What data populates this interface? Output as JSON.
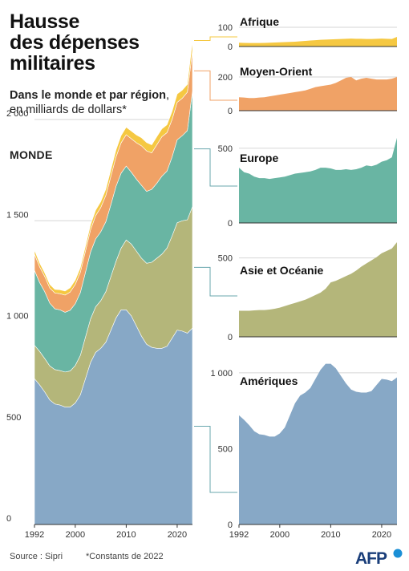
{
  "title": [
    "Hausse",
    "des dépenses",
    "militaires"
  ],
  "subtitle": {
    "line1_bold": "Dans le monde et par région",
    "line1_rest": ",",
    "line2": "en milliards de dollars*"
  },
  "world_label": "MONDE",
  "source": "Source : Sipri",
  "note": "*Constants de 2022",
  "logo_text": "AFP",
  "colors": {
    "afrique": "#f5c842",
    "moyen_orient": "#f0a266",
    "europe": "#69b5a3",
    "asie": "#b4b67a",
    "ameriques": "#87a8c6",
    "connector": "#6aa7ae",
    "connector_top": "#f5c842",
    "connector_mo": "#f0a266"
  },
  "chart_data": [
    {
      "id": "monde",
      "type": "area",
      "stacked": true,
      "title": "MONDE",
      "x": [
        1992,
        1993,
        1994,
        1995,
        1996,
        1997,
        1998,
        1999,
        2000,
        2001,
        2002,
        2003,
        2004,
        2005,
        2006,
        2007,
        2008,
        2009,
        2010,
        2011,
        2012,
        2013,
        2014,
        2015,
        2016,
        2017,
        2018,
        2019,
        2020,
        2021,
        2022,
        2023
      ],
      "xlim": [
        1992,
        2023
      ],
      "xticks": [
        "1992",
        "2000",
        "2010",
        "2020"
      ],
      "ylim": [
        0,
        2400
      ],
      "yticks": [
        "0",
        "500",
        "1 000",
        "1 500",
        "2 000"
      ],
      "series": [
        {
          "name": "Amériques",
          "key": "ameriques",
          "values": [
            720,
            690,
            655,
            615,
            595,
            590,
            580,
            580,
            600,
            640,
            720,
            800,
            850,
            870,
            900,
            960,
            1020,
            1060,
            1060,
            1030,
            980,
            930,
            890,
            875,
            870,
            870,
            880,
            920,
            960,
            955,
            945,
            970
          ]
        },
        {
          "name": "Asie et Océanie",
          "key": "asie",
          "values": [
            165,
            165,
            165,
            168,
            170,
            170,
            173,
            178,
            185,
            195,
            205,
            215,
            225,
            235,
            250,
            265,
            280,
            305,
            345,
            355,
            370,
            385,
            400,
            420,
            445,
            465,
            485,
            505,
            530,
            545,
            560,
            600
          ]
        },
        {
          "name": "Europe",
          "key": "europe",
          "values": [
            370,
            340,
            330,
            310,
            300,
            300,
            295,
            300,
            305,
            310,
            320,
            330,
            335,
            340,
            345,
            355,
            370,
            370,
            365,
            355,
            355,
            360,
            355,
            360,
            370,
            385,
            380,
            390,
            410,
            420,
            440,
            570
          ]
        },
        {
          "name": "Moyen-Orient",
          "key": "moyen_orient",
          "values": [
            80,
            78,
            75,
            75,
            78,
            80,
            85,
            90,
            95,
            100,
            105,
            110,
            115,
            120,
            130,
            140,
            145,
            150,
            155,
            165,
            180,
            195,
            200,
            180,
            190,
            195,
            190,
            185,
            185,
            185,
            190,
            200
          ]
        },
        {
          "name": "Afrique",
          "key": "afrique",
          "values": [
            20,
            19,
            18,
            18,
            18,
            19,
            20,
            21,
            22,
            23,
            24,
            25,
            27,
            29,
            31,
            33,
            35,
            36,
            37,
            38,
            39,
            40,
            41,
            40,
            40,
            39,
            39,
            40,
            41,
            40,
            39,
            50
          ]
        }
      ]
    },
    {
      "id": "afrique",
      "type": "area",
      "title": "Afrique",
      "x": [
        1992,
        1993,
        1994,
        1995,
        1996,
        1997,
        1998,
        1999,
        2000,
        2001,
        2002,
        2003,
        2004,
        2005,
        2006,
        2007,
        2008,
        2009,
        2010,
        2011,
        2012,
        2013,
        2014,
        2015,
        2016,
        2017,
        2018,
        2019,
        2020,
        2021,
        2022,
        2023
      ],
      "values": [
        20,
        19,
        18,
        18,
        18,
        19,
        20,
        21,
        22,
        23,
        24,
        25,
        27,
        29,
        31,
        33,
        35,
        36,
        37,
        38,
        39,
        40,
        41,
        40,
        40,
        39,
        39,
        40,
        41,
        40,
        39,
        50
      ],
      "ylim": [
        0,
        100
      ],
      "yticks": [
        "0",
        "100"
      ],
      "color_key": "afrique"
    },
    {
      "id": "moyen_orient",
      "type": "area",
      "title": "Moyen-Orient",
      "x": [
        1992,
        1993,
        1994,
        1995,
        1996,
        1997,
        1998,
        1999,
        2000,
        2001,
        2002,
        2003,
        2004,
        2005,
        2006,
        2007,
        2008,
        2009,
        2010,
        2011,
        2012,
        2013,
        2014,
        2015,
        2016,
        2017,
        2018,
        2019,
        2020,
        2021,
        2022,
        2023
      ],
      "values": [
        80,
        78,
        75,
        75,
        78,
        80,
        85,
        90,
        95,
        100,
        105,
        110,
        115,
        120,
        130,
        140,
        145,
        150,
        155,
        165,
        180,
        195,
        200,
        180,
        190,
        195,
        190,
        185,
        185,
        185,
        190,
        200
      ],
      "ylim": [
        0,
        200
      ],
      "yticks": [
        "0",
        "200"
      ],
      "color_key": "moyen_orient"
    },
    {
      "id": "europe",
      "type": "area",
      "title": "Europe",
      "x": [
        1992,
        1993,
        1994,
        1995,
        1996,
        1997,
        1998,
        1999,
        2000,
        2001,
        2002,
        2003,
        2004,
        2005,
        2006,
        2007,
        2008,
        2009,
        2010,
        2011,
        2012,
        2013,
        2014,
        2015,
        2016,
        2017,
        2018,
        2019,
        2020,
        2021,
        2022,
        2023
      ],
      "values": [
        370,
        340,
        330,
        310,
        300,
        300,
        295,
        300,
        305,
        310,
        320,
        330,
        335,
        340,
        345,
        355,
        370,
        370,
        365,
        355,
        355,
        360,
        355,
        360,
        370,
        385,
        380,
        390,
        410,
        420,
        440,
        570
      ],
      "ylim": [
        0,
        580
      ],
      "yticks": [
        "0",
        "500"
      ],
      "color_key": "europe"
    },
    {
      "id": "asie",
      "type": "area",
      "title": "Asie et Océanie",
      "x": [
        1992,
        1993,
        1994,
        1995,
        1996,
        1997,
        1998,
        1999,
        2000,
        2001,
        2002,
        2003,
        2004,
        2005,
        2006,
        2007,
        2008,
        2009,
        2010,
        2011,
        2012,
        2013,
        2014,
        2015,
        2016,
        2017,
        2018,
        2019,
        2020,
        2021,
        2022,
        2023
      ],
      "values": [
        165,
        165,
        165,
        168,
        170,
        170,
        173,
        178,
        185,
        195,
        205,
        215,
        225,
        235,
        250,
        265,
        280,
        305,
        345,
        355,
        370,
        385,
        400,
        420,
        445,
        465,
        485,
        505,
        530,
        545,
        560,
        600
      ],
      "ylim": [
        0,
        600
      ],
      "yticks": [
        "0",
        "500"
      ],
      "color_key": "asie"
    },
    {
      "id": "ameriques",
      "type": "area",
      "title": "Amériques",
      "x": [
        1992,
        1993,
        1994,
        1995,
        1996,
        1997,
        1998,
        1999,
        2000,
        2001,
        2002,
        2003,
        2004,
        2005,
        2006,
        2007,
        2008,
        2009,
        2010,
        2011,
        2012,
        2013,
        2014,
        2015,
        2016,
        2017,
        2018,
        2019,
        2020,
        2021,
        2022,
        2023
      ],
      "values": [
        720,
        690,
        655,
        615,
        595,
        590,
        580,
        580,
        600,
        640,
        720,
        800,
        850,
        870,
        900,
        960,
        1020,
        1060,
        1060,
        1030,
        980,
        930,
        890,
        875,
        870,
        870,
        880,
        920,
        960,
        955,
        945,
        970
      ],
      "ylim": [
        0,
        1100
      ],
      "yticks": [
        "0",
        "500",
        "1 000"
      ],
      "xticks": [
        "1992",
        "2000",
        "2010",
        "2020"
      ],
      "color_key": "ameriques"
    }
  ]
}
